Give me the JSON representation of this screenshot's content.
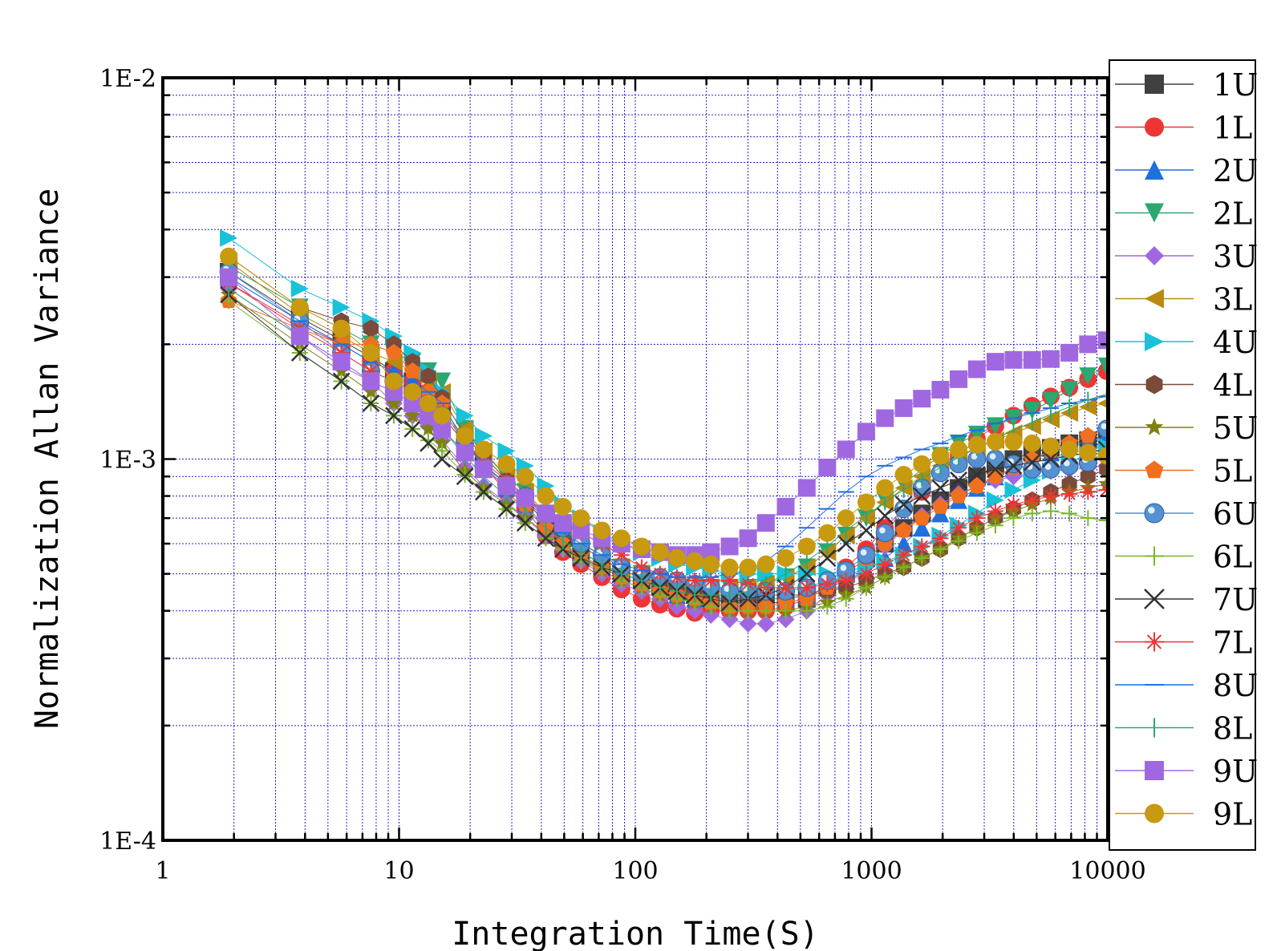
{
  "chart_data": {
    "type": "scatter",
    "title": "",
    "xlabel": "Integration Time(S)",
    "ylabel": "Normalization Allan Variance",
    "x_scale": "log",
    "y_scale": "log",
    "xlim": [
      1,
      10000
    ],
    "ylim": [
      0.0001,
      0.01
    ],
    "grid": true,
    "legend_position": "right",
    "x_tick_labels": [
      "1",
      "10",
      "100",
      "1000",
      "10000"
    ],
    "y_tick_labels": [
      "1E-2",
      "1E-3",
      "1E-4"
    ],
    "x": [
      1.9,
      3.8,
      5.7,
      7.6,
      9.5,
      11.4,
      13.3,
      15.2,
      19,
      22.8,
      28.5,
      34.2,
      41.8,
      49.4,
      58.9,
      72.2,
      87.4,
      106.4,
      127.3,
      150.1,
      178.6,
      209,
      250.8,
      300.2,
      357.2,
      433.2,
      532,
      649.8,
      780,
      950,
      1140,
      1368,
      1634,
      1957,
      2337,
      2793,
      3344,
      3990,
      4788,
      5738,
      6878,
      8246,
      9900
    ],
    "series": [
      {
        "name": "1U",
        "color": "#404040",
        "marker": "square",
        "values": [
          0.0031,
          0.00235,
          0.00205,
          0.00185,
          0.0017,
          0.0016,
          0.00148,
          0.00138,
          0.00112,
          0.00098,
          0.00085,
          0.00078,
          0.00068,
          0.00062,
          0.00057,
          0.00053,
          0.0005,
          0.00048,
          0.000465,
          0.00045,
          0.00044,
          0.00043,
          0.00042,
          0.00042,
          0.00042,
          0.00042,
          0.00043,
          0.00046,
          0.0005,
          0.00055,
          0.0006,
          0.00066,
          0.00072,
          0.00078,
          0.00084,
          0.0009,
          0.00096,
          0.001,
          0.00104,
          0.00107,
          0.0011,
          0.00112,
          0.00115
        ]
      },
      {
        "name": "1L",
        "color": "#ee3535",
        "marker": "circle",
        "values": [
          0.0029,
          0.00225,
          0.002,
          0.0018,
          0.0017,
          0.0016,
          0.0015,
          0.0014,
          0.0011,
          0.00096,
          0.00082,
          0.00074,
          0.00063,
          0.00057,
          0.00053,
          0.00049,
          0.000455,
          0.00043,
          0.000415,
          0.000405,
          0.000395,
          0.0004,
          0.0004,
          0.0004,
          0.0004,
          0.00041,
          0.00043,
          0.00047,
          0.00052,
          0.00058,
          0.00066,
          0.00074,
          0.00082,
          0.00092,
          0.00102,
          0.00113,
          0.00122,
          0.0013,
          0.00138,
          0.00146,
          0.00154,
          0.00162,
          0.0017
        ]
      },
      {
        "name": "2U",
        "color": "#1e6fe0",
        "marker": "triangle-up",
        "values": [
          0.003,
          0.0023,
          0.002,
          0.0018,
          0.0017,
          0.0016,
          0.00148,
          0.00135,
          0.0011,
          0.00096,
          0.00084,
          0.00076,
          0.00066,
          0.0006,
          0.00056,
          0.00052,
          0.00049,
          0.00047,
          0.00045,
          0.00044,
          0.00043,
          0.00043,
          0.00043,
          0.00043,
          0.00043,
          0.00043,
          0.00044,
          0.00046,
          0.00048,
          0.00051,
          0.00055,
          0.0006,
          0.00066,
          0.00072,
          0.00078,
          0.00084,
          0.0009,
          0.00095,
          0.001,
          0.00104,
          0.00108,
          0.00111,
          0.00114
        ]
      },
      {
        "name": "2L",
        "color": "#2aa870",
        "marker": "triangle-down",
        "values": [
          0.0032,
          0.0025,
          0.0022,
          0.002,
          0.0019,
          0.0018,
          0.0017,
          0.0016,
          0.0012,
          0.00104,
          0.0009,
          0.00082,
          0.00072,
          0.00066,
          0.0006,
          0.00056,
          0.00052,
          0.0005,
          0.00048,
          0.00047,
          0.00046,
          0.00046,
          0.00046,
          0.00046,
          0.00047,
          0.00049,
          0.00052,
          0.00057,
          0.00063,
          0.0007,
          0.00078,
          0.00086,
          0.00094,
          0.00102,
          0.0011,
          0.00116,
          0.00122,
          0.00128,
          0.00134,
          0.00142,
          0.00152,
          0.00165,
          0.00175
        ]
      },
      {
        "name": "3U",
        "color": "#a068e0",
        "marker": "diamond",
        "values": [
          0.0028,
          0.0021,
          0.00175,
          0.0016,
          0.0014,
          0.0013,
          0.00122,
          0.00112,
          0.00095,
          0.00085,
          0.00077,
          0.0007,
          0.00063,
          0.00058,
          0.00054,
          0.0005,
          0.00047,
          0.00045,
          0.00043,
          0.00041,
          0.0004,
          0.00039,
          0.00038,
          0.00037,
          0.00037,
          0.00038,
          0.0004,
          0.00044,
          0.00048,
          0.00053,
          0.00059,
          0.00065,
          0.00071,
          0.00076,
          0.00081,
          0.00085,
          0.00088,
          0.0009,
          0.00092,
          0.00093,
          0.00094,
          0.00095,
          0.00096
        ]
      },
      {
        "name": "3L",
        "color": "#b88a10",
        "marker": "triangle-left",
        "values": [
          0.0033,
          0.0024,
          0.0021,
          0.0019,
          0.0018,
          0.0017,
          0.0016,
          0.0015,
          0.0012,
          0.00105,
          0.0009,
          0.00082,
          0.00072,
          0.00066,
          0.0006,
          0.00056,
          0.00052,
          0.0005,
          0.00048,
          0.00047,
          0.00046,
          0.00046,
          0.00046,
          0.00046,
          0.00047,
          0.00049,
          0.00052,
          0.00057,
          0.00063,
          0.0007,
          0.00077,
          0.00084,
          0.0009,
          0.00096,
          0.00102,
          0.00107,
          0.00112,
          0.00117,
          0.00122,
          0.00127,
          0.00132,
          0.00137,
          0.0014
        ]
      },
      {
        "name": "4U",
        "color": "#18c2d8",
        "marker": "triangle-right",
        "values": [
          0.0038,
          0.0028,
          0.0025,
          0.0023,
          0.0021,
          0.0019,
          0.0017,
          0.0015,
          0.0013,
          0.00115,
          0.00105,
          0.00096,
          0.00085,
          0.00076,
          0.0007,
          0.00064,
          0.0006,
          0.00057,
          0.00055,
          0.00053,
          0.00052,
          0.00051,
          0.0005,
          0.0005,
          0.0005,
          0.0005,
          0.0005,
          0.0005,
          0.00051,
          0.00052,
          0.00054,
          0.00056,
          0.00059,
          0.00063,
          0.00067,
          0.00072,
          0.00078,
          0.00083,
          0.00088,
          0.00093,
          0.00098,
          0.00103,
          0.00108
        ]
      },
      {
        "name": "4L",
        "color": "#7a4a3a",
        "marker": "hexagon",
        "values": [
          0.0034,
          0.0025,
          0.0023,
          0.0022,
          0.002,
          0.0018,
          0.00165,
          0.00145,
          0.00115,
          0.00102,
          0.00088,
          0.0008,
          0.0007,
          0.00064,
          0.00059,
          0.00055,
          0.00051,
          0.00049,
          0.00047,
          0.00046,
          0.00045,
          0.00044,
          0.00044,
          0.00044,
          0.00044,
          0.00044,
          0.00044,
          0.00045,
          0.00046,
          0.00048,
          0.0005,
          0.00052,
          0.00055,
          0.00058,
          0.00062,
          0.00066,
          0.0007,
          0.00074,
          0.00078,
          0.00082,
          0.00086,
          0.0009,
          0.00094
        ]
      },
      {
        "name": "5U",
        "color": "#808010",
        "marker": "star",
        "values": [
          0.0027,
          0.002,
          0.0017,
          0.0015,
          0.0014,
          0.0013,
          0.0012,
          0.0011,
          0.00093,
          0.00084,
          0.00076,
          0.0007,
          0.00064,
          0.00059,
          0.00055,
          0.00051,
          0.00048,
          0.00046,
          0.00044,
          0.00043,
          0.00042,
          0.00041,
          0.0004,
          0.0004,
          0.0004,
          0.0004,
          0.00041,
          0.00042,
          0.00044,
          0.00046,
          0.00049,
          0.00052,
          0.00055,
          0.00058,
          0.00062,
          0.00066,
          0.0007,
          0.00073,
          0.00076,
          0.00079,
          0.00082,
          0.00084,
          0.00086
        ]
      },
      {
        "name": "5L",
        "color": "#f07020",
        "marker": "pentagon",
        "values": [
          0.0026,
          0.0022,
          0.002,
          0.002,
          0.0019,
          0.0017,
          0.0015,
          0.0014,
          0.0011,
          0.00096,
          0.00084,
          0.00076,
          0.00066,
          0.0006,
          0.00056,
          0.00052,
          0.00049,
          0.00047,
          0.00045,
          0.00044,
          0.00043,
          0.00042,
          0.00041,
          0.00041,
          0.00041,
          0.00042,
          0.00043,
          0.00046,
          0.0005,
          0.00055,
          0.0006,
          0.00065,
          0.0007,
          0.00075,
          0.0008,
          0.00085,
          0.0009,
          0.00095,
          0.001,
          0.00105,
          0.0011,
          0.00115,
          0.0012
        ]
      },
      {
        "name": "6U",
        "color": "#5590d0",
        "marker": "sphere",
        "values": [
          0.0031,
          0.0023,
          0.0019,
          0.0017,
          0.0016,
          0.0015,
          0.0014,
          0.0013,
          0.0011,
          0.00096,
          0.00086,
          0.0008,
          0.00072,
          0.00066,
          0.0006,
          0.00056,
          0.00052,
          0.0005,
          0.00049,
          0.00048,
          0.00047,
          0.00046,
          0.00045,
          0.00045,
          0.00045,
          0.00045,
          0.00046,
          0.00048,
          0.00051,
          0.00056,
          0.00064,
          0.00074,
          0.00084,
          0.00092,
          0.00097,
          0.001,
          0.001,
          0.00097,
          0.00094,
          0.00094,
          0.00096,
          0.00098,
          0.0012
        ]
      },
      {
        "name": "6L",
        "color": "#7ab828",
        "marker": "plus",
        "values": [
          0.0026,
          0.0019,
          0.0016,
          0.0014,
          0.0013,
          0.0012,
          0.00112,
          0.00105,
          0.00091,
          0.00082,
          0.00074,
          0.00068,
          0.00062,
          0.00058,
          0.00054,
          0.00051,
          0.00048,
          0.00046,
          0.00044,
          0.00043,
          0.00042,
          0.00041,
          0.0004,
          0.0004,
          0.0004,
          0.0004,
          0.0004,
          0.00041,
          0.00043,
          0.00046,
          0.00049,
          0.00052,
          0.00055,
          0.00058,
          0.00061,
          0.00064,
          0.00067,
          0.0007,
          0.00072,
          0.00073,
          0.00072,
          0.0007,
          0.00069
        ]
      },
      {
        "name": "7U",
        "color": "#333333",
        "marker": "x",
        "values": [
          0.0027,
          0.0019,
          0.0016,
          0.0014,
          0.0013,
          0.0012,
          0.0011,
          0.001,
          0.0009,
          0.00082,
          0.00074,
          0.00068,
          0.00062,
          0.00058,
          0.00055,
          0.00052,
          0.0005,
          0.00048,
          0.00046,
          0.00045,
          0.00044,
          0.00043,
          0.00042,
          0.00043,
          0.00044,
          0.00046,
          0.0005,
          0.00055,
          0.0006,
          0.00065,
          0.00071,
          0.00076,
          0.0008,
          0.00084,
          0.00088,
          0.00091,
          0.00094,
          0.00096,
          0.00098,
          0.001,
          0.00102,
          0.00104,
          0.00106
        ]
      },
      {
        "name": "7L",
        "color": "#ee3535",
        "marker": "asterisk",
        "values": [
          0.0029,
          0.0022,
          0.0019,
          0.0017,
          0.0016,
          0.0015,
          0.0014,
          0.0013,
          0.0011,
          0.00098,
          0.00088,
          0.0008,
          0.00072,
          0.00068,
          0.00064,
          0.0006,
          0.00056,
          0.00052,
          0.0005,
          0.00049,
          0.00048,
          0.00048,
          0.00048,
          0.00047,
          0.00046,
          0.00046,
          0.00046,
          0.00047,
          0.00048,
          0.0005,
          0.00053,
          0.00056,
          0.00059,
          0.00062,
          0.00066,
          0.0007,
          0.00073,
          0.00076,
          0.00078,
          0.0008,
          0.00081,
          0.00082,
          0.00083
        ]
      },
      {
        "name": "8U",
        "color": "#1e6fe0",
        "marker": "dash",
        "values": [
          0.003,
          0.0023,
          0.002,
          0.0018,
          0.0017,
          0.0016,
          0.0015,
          0.0014,
          0.0011,
          0.00097,
          0.00086,
          0.00078,
          0.0007,
          0.00064,
          0.0006,
          0.00056,
          0.00053,
          0.00051,
          0.0005,
          0.00049,
          0.00049,
          0.00049,
          0.0005,
          0.00051,
          0.00054,
          0.00059,
          0.00066,
          0.00074,
          0.00082,
          0.0009,
          0.00096,
          0.00101,
          0.00106,
          0.0011,
          0.00115,
          0.00119,
          0.00124,
          0.00128,
          0.00132,
          0.00136,
          0.0014,
          0.00143,
          0.00146
        ]
      },
      {
        "name": "8L",
        "color": "#2aa870",
        "marker": "vline",
        "values": [
          0.0028,
          0.0021,
          0.0018,
          0.0016,
          0.0015,
          0.0014,
          0.0013,
          0.0012,
          0.00102,
          0.0009,
          0.0008,
          0.00074,
          0.00066,
          0.00061,
          0.00057,
          0.00053,
          0.0005,
          0.00048,
          0.00046,
          0.00045,
          0.00044,
          0.00044,
          0.00044,
          0.00045,
          0.00047,
          0.0005,
          0.00054,
          0.00059,
          0.00065,
          0.00071,
          0.00077,
          0.00083,
          0.00089,
          0.00095,
          0.00101,
          0.00107,
          0.00113,
          0.00119,
          0.00125,
          0.00131,
          0.00137,
          0.00143,
          0.00148
        ]
      },
      {
        "name": "9U",
        "color": "#a068e0",
        "marker": "square",
        "values": [
          0.003,
          0.0021,
          0.0018,
          0.0016,
          0.0015,
          0.0014,
          0.0013,
          0.0012,
          0.00104,
          0.00094,
          0.00085,
          0.00079,
          0.00072,
          0.00068,
          0.00065,
          0.00062,
          0.0006,
          0.00058,
          0.00057,
          0.00056,
          0.00056,
          0.00057,
          0.00059,
          0.00062,
          0.00068,
          0.00075,
          0.00084,
          0.00095,
          0.00106,
          0.00118,
          0.00128,
          0.00136,
          0.00144,
          0.00152,
          0.00162,
          0.00172,
          0.0018,
          0.00182,
          0.00182,
          0.00183,
          0.0019,
          0.002,
          0.00205
        ]
      },
      {
        "name": "9L",
        "color": "#c89a10",
        "marker": "circle",
        "values": [
          0.0034,
          0.0025,
          0.0022,
          0.0019,
          0.0016,
          0.0015,
          0.0014,
          0.0013,
          0.00115,
          0.00106,
          0.00097,
          0.0009,
          0.0008,
          0.00075,
          0.0007,
          0.00065,
          0.00062,
          0.00059,
          0.00057,
          0.00055,
          0.00054,
          0.00053,
          0.00052,
          0.00052,
          0.00053,
          0.00055,
          0.00059,
          0.00064,
          0.0007,
          0.00077,
          0.00084,
          0.00091,
          0.00097,
          0.00102,
          0.00106,
          0.00109,
          0.00111,
          0.00111,
          0.0011,
          0.00108,
          0.00106,
          0.00104,
          0.00102
        ]
      }
    ]
  }
}
